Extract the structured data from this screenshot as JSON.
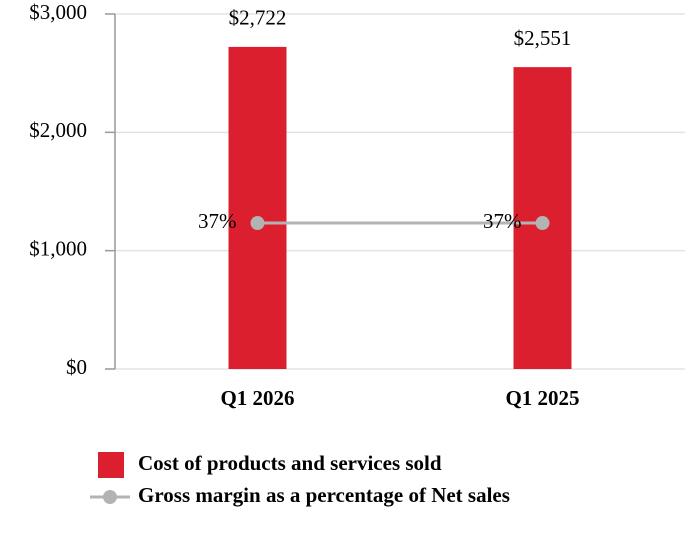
{
  "chart_data": {
    "type": "bar",
    "categories": [
      "Q1 2026",
      "Q1 2025"
    ],
    "series": [
      {
        "name": "Cost of products and services sold",
        "type": "bar",
        "color": "#dc1f2e",
        "values": [
          2722,
          2551
        ],
        "value_labels": [
          "$2,722",
          "$2,551"
        ]
      },
      {
        "name": "Gross margin as a percentage of Net sales",
        "type": "line",
        "axis": "y2",
        "color": "#b3b3b3",
        "values": [
          37,
          37
        ],
        "value_labels": [
          "37%",
          "37%"
        ]
      }
    ],
    "ylim": [
      0,
      3000
    ],
    "yticks": [
      {
        "value": 0,
        "label": "$0"
      },
      {
        "value": 1000,
        "label": "$1,000"
      },
      {
        "value": 2000,
        "label": "$2,000"
      },
      {
        "value": 3000,
        "label": "$3,000"
      }
    ],
    "y2lim": [
      0,
      90
    ],
    "grid": true
  }
}
